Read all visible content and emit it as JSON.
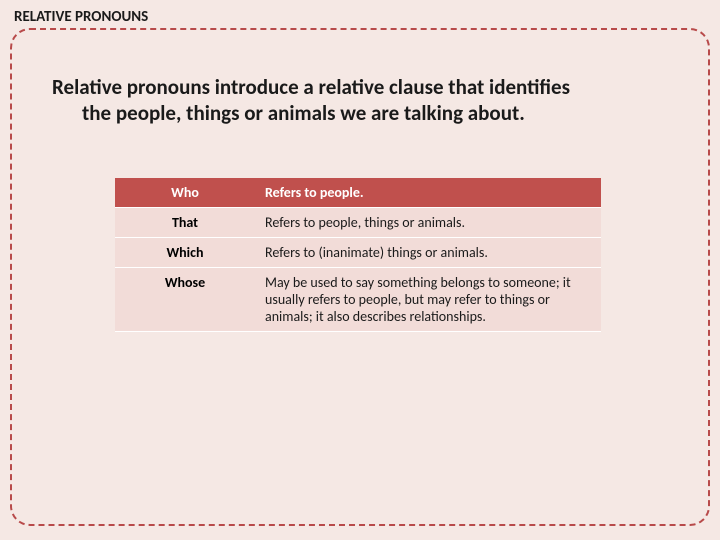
{
  "header": "RELATIVE PRONOUNS",
  "intro": {
    "line1": "Relative pronouns introduce a relative clause that identifies",
    "line2": "the people, things or animals we are talking about."
  },
  "table": {
    "rows": [
      {
        "pronoun": "Who",
        "desc": "Refers to people."
      },
      {
        "pronoun": "That",
        "desc": "Refers to people, things or animals."
      },
      {
        "pronoun": "Which",
        "desc": "Refers to (inanimate) things or animals."
      },
      {
        "pronoun": "Whose",
        "desc": "May be used to say something belongs to someone; it usually refers to people, but may refer to things or animals; it also describes relationships."
      }
    ]
  },
  "colors": {
    "page_bg": "#f5e8e4",
    "dashed_border": "#b84a4a",
    "header_row_bg": "#c0504d",
    "header_row_text": "#ffffff",
    "cell_bg": "#f2dcd8",
    "text": "#1a1a1a"
  },
  "typography": {
    "header_fontsize": 15,
    "intro_fontsize": 21,
    "table_fontsize": 14
  }
}
